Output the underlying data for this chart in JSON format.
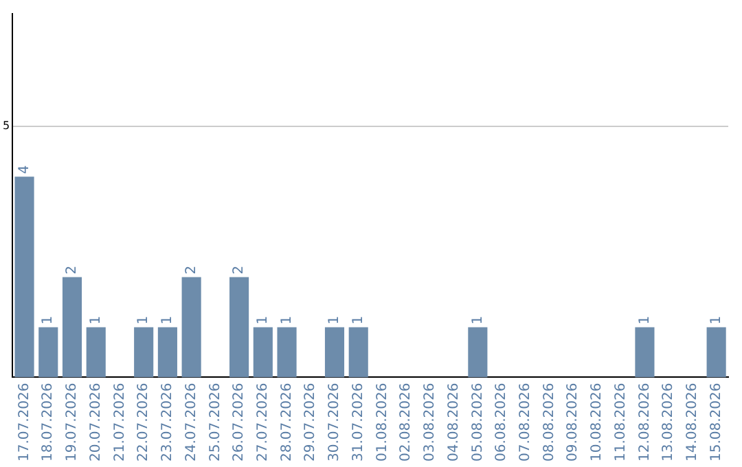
{
  "chart_data": {
    "type": "bar",
    "categories": [
      "17.07.2026",
      "18.07.2026",
      "19.07.2026",
      "20.07.2026",
      "21.07.2026",
      "22.07.2026",
      "23.07.2026",
      "24.07.2026",
      "25.07.2026",
      "26.07.2026",
      "27.07.2026",
      "28.07.2026",
      "29.07.2026",
      "30.07.2026",
      "31.07.2026",
      "01.08.2026",
      "02.08.2026",
      "03.08.2026",
      "04.08.2026",
      "05.08.2026",
      "06.08.2026",
      "07.08.2026",
      "08.08.2026",
      "09.08.2026",
      "10.08.2026",
      "11.08.2026",
      "12.08.2026",
      "13.08.2026",
      "14.08.2026",
      "15.08.2026"
    ],
    "values": [
      4,
      1,
      2,
      1,
      0,
      1,
      1,
      2,
      0,
      2,
      1,
      1,
      0,
      1,
      1,
      0,
      0,
      0,
      0,
      1,
      0,
      0,
      0,
      0,
      0,
      0,
      1,
      0,
      0,
      1
    ],
    "value_labels": [
      "4",
      "1",
      "2",
      "1",
      null,
      "1",
      "1",
      "2",
      null,
      "2",
      "1",
      "1",
      null,
      "1",
      "1",
      null,
      null,
      null,
      null,
      "1",
      null,
      null,
      null,
      null,
      null,
      null,
      "1",
      null,
      null,
      "1"
    ],
    "color": "#6d8cab",
    "ylim": [
      0,
      7.25
    ],
    "yticks": [
      5
    ],
    "grid": "y",
    "legend": false
  }
}
